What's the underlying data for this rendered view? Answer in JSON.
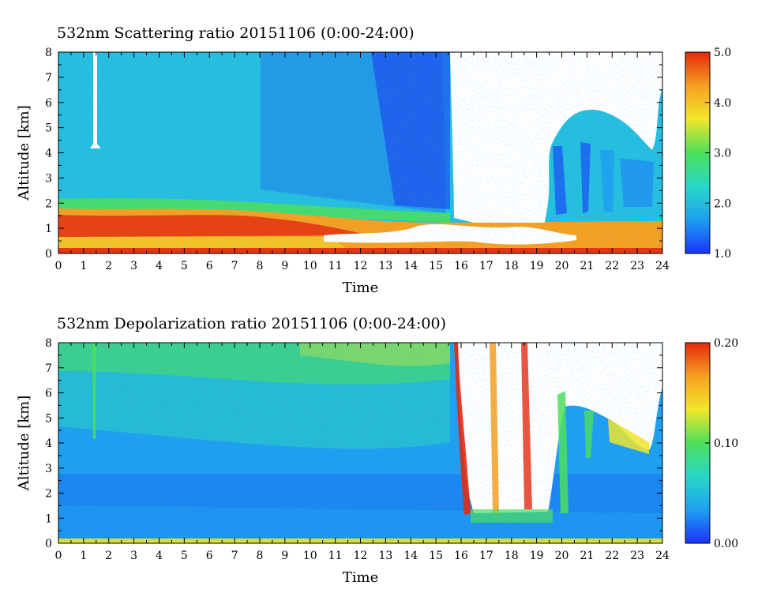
{
  "chart_data": [
    {
      "type": "heatmap",
      "title": "532nm Scattering ratio  20151106 (0:00-24:00)",
      "xlabel": "Time",
      "ylabel": "Altitude [km]",
      "xlim": [
        0,
        24
      ],
      "ylim": [
        0,
        8
      ],
      "x_ticks": [
        "0",
        "1",
        "2",
        "3",
        "4",
        "5",
        "6",
        "7",
        "8",
        "9",
        "10",
        "11",
        "12",
        "13",
        "14",
        "15",
        "16",
        "17",
        "18",
        "19",
        "20",
        "21",
        "22",
        "23",
        "24"
      ],
      "y_ticks": [
        "0",
        "1",
        "2",
        "3",
        "4",
        "5",
        "6",
        "7",
        "8"
      ],
      "colorbar": {
        "range": [
          1.0,
          5.0
        ],
        "ticks": [
          "1.0",
          "2.0",
          "3.0",
          "4.0",
          "5.0"
        ],
        "colors": [
          "#1a33ff",
          "#1ea0f0",
          "#27d8c8",
          "#4ce05a",
          "#f2e62a",
          "#f5a020",
          "#e6280c"
        ]
      }
    },
    {
      "type": "heatmap",
      "title": "532nm Depolarization ratio  20151106 (0:00-24:00)",
      "xlabel": "Time",
      "ylabel": "Altitude [km]",
      "xlim": [
        0,
        24
      ],
      "ylim": [
        0,
        8
      ],
      "x_ticks": [
        "0",
        "1",
        "2",
        "3",
        "4",
        "5",
        "6",
        "7",
        "8",
        "9",
        "10",
        "11",
        "12",
        "13",
        "14",
        "15",
        "16",
        "17",
        "18",
        "19",
        "20",
        "21",
        "22",
        "23",
        "24"
      ],
      "y_ticks": [
        "0",
        "1",
        "2",
        "3",
        "4",
        "5",
        "6",
        "7",
        "8"
      ],
      "colorbar": {
        "range": [
          0.0,
          0.2
        ],
        "ticks": [
          "0.00",
          "0.10",
          "0.20"
        ],
        "colors": [
          "#1a33ff",
          "#1ea0f0",
          "#27d8c8",
          "#4ce05a",
          "#f2e62a",
          "#f5a020",
          "#e6280c"
        ]
      }
    }
  ]
}
